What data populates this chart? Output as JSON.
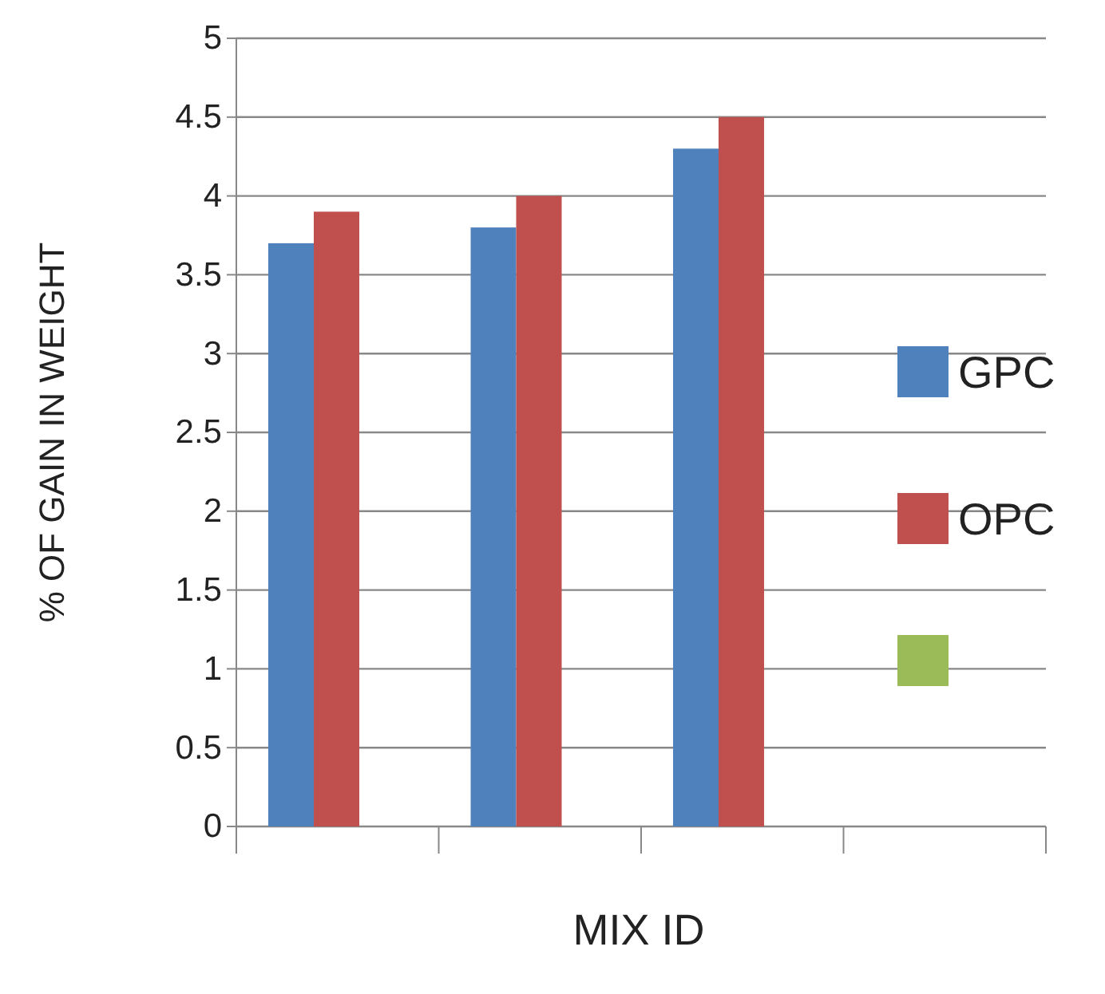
{
  "chart_data": {
    "type": "bar",
    "xlabel": "MIX ID",
    "ylabel": "% OF GAIN IN WEIGHT",
    "categories": [
      null,
      null,
      null,
      null
    ],
    "series": [
      {
        "name": "GPC",
        "color": "#4f81bd",
        "values": [
          3.7,
          3.8,
          4.3,
          null
        ]
      },
      {
        "name": "OPC",
        "color": "#c0504d",
        "values": [
          3.9,
          4.0,
          4.5,
          null
        ]
      },
      {
        "color": "#9bbb59",
        "values": [
          null,
          null,
          null,
          null
        ]
      }
    ],
    "ylim": [
      0,
      5
    ],
    "yticks": [
      0,
      0.5,
      1,
      1.5,
      2,
      2.5,
      3,
      3.5,
      4,
      4.5,
      5
    ],
    "grid": "y",
    "legend": "right"
  }
}
